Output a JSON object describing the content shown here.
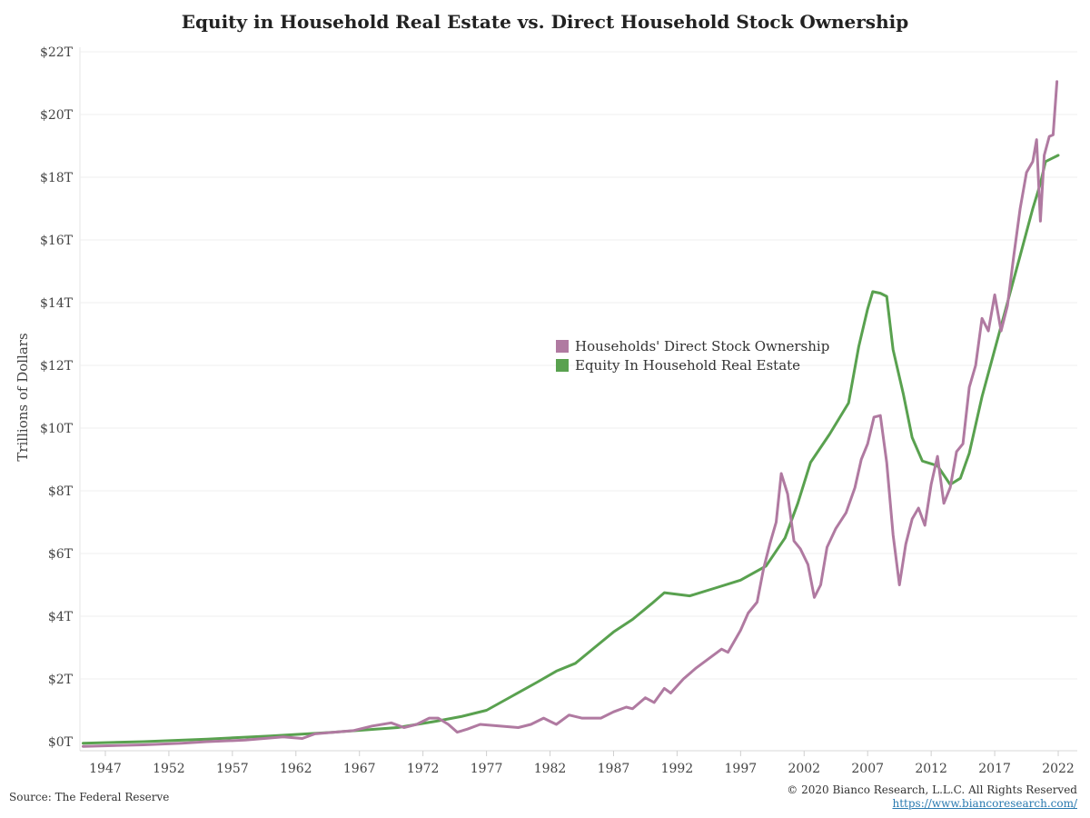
{
  "title": "Equity in Household Real Estate vs. Direct Household Stock Ownership",
  "source": "Source: The Federal Reserve",
  "copyright": "© 2020 Bianco Research, L.L.C. All Rights Reserved",
  "url": "https://www.biancoresearch.com/",
  "colors": {
    "stock": "#b07aa1",
    "real_estate": "#59a14f"
  },
  "chart_data": {
    "type": "line",
    "ylabel": "Trillions of Dollars",
    "xlabel": "",
    "xlim": [
      1945.0,
      2023.5
    ],
    "ylim": [
      0,
      22
    ],
    "x_ticks": [
      1947,
      1952,
      1957,
      1962,
      1967,
      1972,
      1977,
      1982,
      1987,
      1992,
      1997,
      2002,
      2007,
      2012,
      2017,
      2022
    ],
    "x_tick_labels": [
      "1947",
      "1952",
      "1957",
      "1962",
      "1967",
      "1972",
      "1977",
      "1982",
      "1987",
      "1992",
      "1997",
      "2002",
      "2007",
      "2012",
      "2017",
      "2022"
    ],
    "y_ticks": [
      0,
      2,
      4,
      6,
      8,
      10,
      12,
      14,
      16,
      18,
      20,
      22
    ],
    "y_tick_labels": [
      "$0T",
      "$2T",
      "$4T",
      "$6T",
      "$8T",
      "$10T",
      "$12T",
      "$14T",
      "$16T",
      "$18T",
      "$20T",
      "$22T"
    ],
    "grid": true,
    "legend_position": "center-right",
    "series": [
      {
        "name": "Households' Direct Stock Ownership",
        "color": "#b07aa1",
        "points": [
          [
            1945.25,
            -0.15
          ],
          [
            1950,
            -0.1
          ],
          [
            1953,
            -0.05
          ],
          [
            1955,
            0.0
          ],
          [
            1958,
            0.05
          ],
          [
            1961,
            0.15
          ],
          [
            1962.5,
            0.1
          ],
          [
            1963.5,
            0.25
          ],
          [
            1965,
            0.3
          ],
          [
            1966.5,
            0.35
          ],
          [
            1968,
            0.5
          ],
          [
            1969.5,
            0.6
          ],
          [
            1970.5,
            0.45
          ],
          [
            1971.5,
            0.55
          ],
          [
            1972.5,
            0.75
          ],
          [
            1973.2,
            0.75
          ],
          [
            1974,
            0.55
          ],
          [
            1974.7,
            0.3
          ],
          [
            1975.5,
            0.4
          ],
          [
            1976.5,
            0.55
          ],
          [
            1978,
            0.5
          ],
          [
            1979.5,
            0.45
          ],
          [
            1980.5,
            0.55
          ],
          [
            1981.5,
            0.75
          ],
          [
            1982,
            0.65
          ],
          [
            1982.5,
            0.55
          ],
          [
            1983.5,
            0.85
          ],
          [
            1984.5,
            0.75
          ],
          [
            1986,
            0.75
          ],
          [
            1987,
            0.95
          ],
          [
            1988,
            1.1
          ],
          [
            1988.5,
            1.05
          ],
          [
            1989.5,
            1.4
          ],
          [
            1990.2,
            1.25
          ],
          [
            1991,
            1.7
          ],
          [
            1991.5,
            1.55
          ],
          [
            1992.5,
            2.0
          ],
          [
            1993.5,
            2.35
          ],
          [
            1994.5,
            2.65
          ],
          [
            1995.5,
            2.95
          ],
          [
            1996,
            2.85
          ],
          [
            1997,
            3.55
          ],
          [
            1997.6,
            4.1
          ],
          [
            1998.3,
            4.45
          ],
          [
            1998.8,
            5.5
          ],
          [
            1999.3,
            6.3
          ],
          [
            1999.8,
            7.0
          ],
          [
            2000.2,
            8.55
          ],
          [
            2000.7,
            7.9
          ],
          [
            2001.2,
            6.4
          ],
          [
            2001.7,
            6.15
          ],
          [
            2002.3,
            5.65
          ],
          [
            2002.8,
            4.6
          ],
          [
            2003.3,
            5.0
          ],
          [
            2003.8,
            6.2
          ],
          [
            2004.5,
            6.8
          ],
          [
            2005.3,
            7.3
          ],
          [
            2006,
            8.1
          ],
          [
            2006.5,
            9.0
          ],
          [
            2007,
            9.5
          ],
          [
            2007.5,
            10.35
          ],
          [
            2008,
            10.4
          ],
          [
            2008.5,
            8.9
          ],
          [
            2009,
            6.6
          ],
          [
            2009.5,
            5.0
          ],
          [
            2010,
            6.3
          ],
          [
            2010.5,
            7.1
          ],
          [
            2011,
            7.45
          ],
          [
            2011.5,
            6.9
          ],
          [
            2012,
            8.2
          ],
          [
            2012.5,
            9.1
          ],
          [
            2013,
            7.6
          ],
          [
            2013.5,
            8.1
          ],
          [
            2014,
            9.25
          ],
          [
            2014.5,
            9.5
          ],
          [
            2015,
            11.3
          ],
          [
            2015.5,
            12.0
          ],
          [
            2016,
            13.5
          ],
          [
            2016.5,
            13.1
          ],
          [
            2017,
            14.25
          ],
          [
            2017.5,
            13.1
          ],
          [
            2018,
            13.9
          ],
          [
            2018.5,
            15.5
          ],
          [
            2019,
            17.0
          ],
          [
            2019.5,
            18.15
          ],
          [
            2020,
            18.5
          ],
          [
            2020.3,
            19.2
          ],
          [
            2020.6,
            16.6
          ],
          [
            2020.9,
            18.7
          ],
          [
            2021.3,
            19.3
          ],
          [
            2021.6,
            19.35
          ],
          [
            2021.9,
            21.05
          ]
        ]
      },
      {
        "name": "Equity In Household Real Estate",
        "color": "#59a14f",
        "points": [
          [
            1945.25,
            -0.05
          ],
          [
            1950,
            0.0
          ],
          [
            1955,
            0.08
          ],
          [
            1960,
            0.18
          ],
          [
            1965,
            0.3
          ],
          [
            1970,
            0.45
          ],
          [
            1973,
            0.65
          ],
          [
            1975,
            0.8
          ],
          [
            1977,
            1.0
          ],
          [
            1979,
            1.45
          ],
          [
            1981,
            1.9
          ],
          [
            1982.5,
            2.25
          ],
          [
            1984,
            2.5
          ],
          [
            1985.5,
            3.0
          ],
          [
            1987,
            3.5
          ],
          [
            1988.5,
            3.9
          ],
          [
            1990,
            4.4
          ],
          [
            1991,
            4.75
          ],
          [
            1993,
            4.65
          ],
          [
            1995,
            4.9
          ],
          [
            1997,
            5.15
          ],
          [
            1999,
            5.6
          ],
          [
            2000.5,
            6.5
          ],
          [
            2001.5,
            7.6
          ],
          [
            2002.5,
            8.9
          ],
          [
            2004,
            9.8
          ],
          [
            2005.5,
            10.8
          ],
          [
            2006.3,
            12.6
          ],
          [
            2007,
            13.8
          ],
          [
            2007.4,
            14.35
          ],
          [
            2008,
            14.3
          ],
          [
            2008.5,
            14.2
          ],
          [
            2009,
            12.5
          ],
          [
            2009.8,
            11.1
          ],
          [
            2010.5,
            9.7
          ],
          [
            2011.3,
            8.95
          ],
          [
            2012.5,
            8.8
          ],
          [
            2013.5,
            8.2
          ],
          [
            2014.3,
            8.4
          ],
          [
            2015,
            9.2
          ],
          [
            2016,
            11.0
          ],
          [
            2017,
            12.5
          ],
          [
            2018,
            14.0
          ],
          [
            2019,
            15.5
          ],
          [
            2020,
            17.0
          ],
          [
            2020.6,
            17.8
          ],
          [
            2021,
            18.5
          ],
          [
            2021.5,
            18.6
          ],
          [
            2022,
            18.7
          ]
        ]
      }
    ]
  }
}
